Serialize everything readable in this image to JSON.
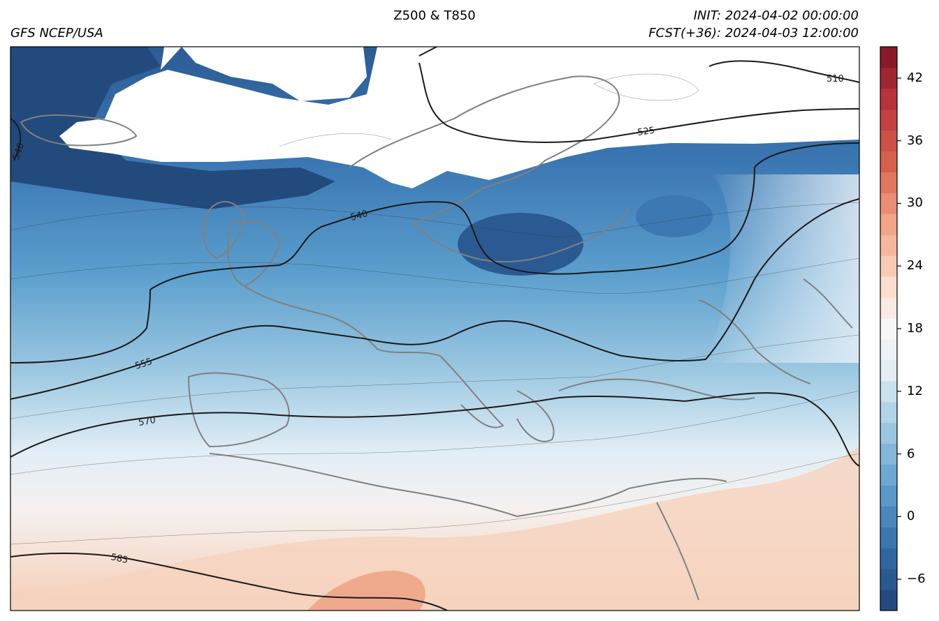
{
  "header": {
    "source": "GFS NCEP/USA",
    "title": "Z500 & T850",
    "init": "INIT: 2024-04-02 00:00:00",
    "forecast": "FCST(+36): 2024-04-03 12:00:00"
  },
  "colorbar": {
    "min": -9,
    "max": 45,
    "step": 2,
    "ticks": [
      "-6",
      "0",
      "6",
      "12",
      "18",
      "24",
      "30",
      "36",
      "42"
    ],
    "tick_values": [
      -6,
      0,
      6,
      12,
      18,
      24,
      30,
      36,
      42
    ],
    "colormap": "RdBu_r",
    "colors": {
      "deep_blue": "#1f4476",
      "mid_blue": "#4a8ec2",
      "light_blue": "#a9cfe5",
      "white": "#f7f7f7",
      "light_red": "#f8d9c7",
      "mid_red": "#e07f66",
      "dark_red": "#7b1426"
    }
  },
  "contours": {
    "variable": "Z500",
    "labels": [
      "510",
      "525",
      "540",
      "540",
      "555",
      "570",
      "585"
    ],
    "line_color": "#1a1a1a",
    "coastline_color": "#808080"
  }
}
